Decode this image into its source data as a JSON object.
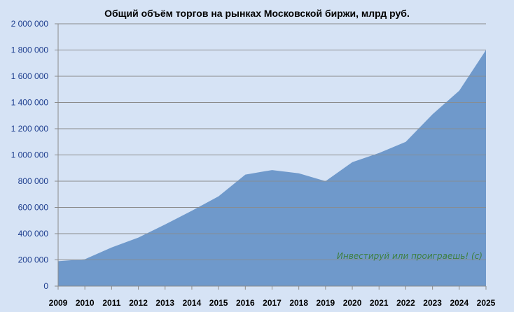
{
  "chart_data": {
    "type": "area",
    "title": "Общий объём торгов на рынках  Московской  биржи, млрд руб.",
    "xlabel": "",
    "ylabel": "",
    "x": [
      "2009",
      "2010",
      "2011",
      "2012",
      "2013",
      "2014",
      "2015",
      "2016",
      "2017",
      "2018",
      "2019",
      "2020",
      "2021",
      "2022",
      "2023",
      "2024",
      "2025"
    ],
    "y_tick_labels": [
      "0",
      "200 000",
      "400 000",
      "600 000",
      "800 000",
      "1 000 000",
      "1 200 000",
      "1 400 000",
      "1 600 000",
      "1 800 000",
      "2 000 000"
    ],
    "ylim": [
      0,
      2000000
    ],
    "grid": true,
    "legend": "none",
    "series": [
      {
        "values": [
          190000,
          205000,
          295000,
          370000,
          470000,
          575000,
          685000,
          850000,
          885000,
          860000,
          800000,
          945000,
          1015000,
          1100000,
          1310000,
          1490000,
          1800000
        ]
      }
    ],
    "annotation": "Инвестируй или проиграешь! (с)",
    "colors": {
      "background": "#d6e3f5",
      "area_fill": "#6f99cb",
      "gridline": "#8b8b8b",
      "axis": "#8b8b8b",
      "y_tick_text": "#1f3f8f",
      "annotation_text": "#3f7f3f"
    }
  }
}
